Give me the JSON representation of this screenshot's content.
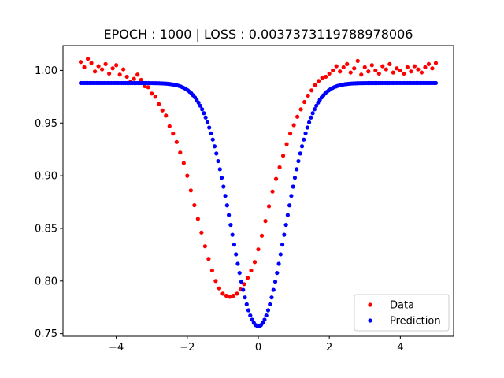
{
  "chart_data": {
    "type": "scatter",
    "title": "EPOCH : 1000 | LOSS : 0.0037373119788978006",
    "xlabel": "",
    "ylabel": "",
    "xlim": [
      -5.5,
      5.5
    ],
    "ylim": [
      0.7475,
      1.0235
    ],
    "x_ticks": [
      -4,
      -2,
      0,
      2,
      4
    ],
    "x_tick_labels": [
      "−4",
      "−2",
      "0",
      "2",
      "4"
    ],
    "y_ticks": [
      0.75,
      0.8,
      0.85,
      0.9,
      0.95,
      1.0
    ],
    "y_tick_labels": [
      "0.75",
      "0.80",
      "0.85",
      "0.90",
      "0.95",
      "1.00"
    ],
    "grid": false,
    "legend_position": "lower right",
    "series": [
      {
        "name": "Data",
        "color": "#ff0000",
        "x": [
          -5.0,
          -4.9,
          -4.8,
          -4.7,
          -4.6,
          -4.5,
          -4.4,
          -4.3,
          -4.2,
          -4.1,
          -4.0,
          -3.9,
          -3.8,
          -3.7,
          -3.6,
          -3.5,
          -3.4,
          -3.3,
          -3.2,
          -3.1,
          -3.0,
          -2.9,
          -2.8,
          -2.7,
          -2.6,
          -2.5,
          -2.4,
          -2.3,
          -2.2,
          -2.1,
          -2.0,
          -1.9,
          -1.8,
          -1.7,
          -1.6,
          -1.5,
          -1.4,
          -1.3,
          -1.2,
          -1.1,
          -1.0,
          -0.9,
          -0.8,
          -0.7,
          -0.6,
          -0.5,
          -0.4,
          -0.3,
          -0.2,
          -0.1,
          0.0,
          0.1,
          0.2,
          0.3,
          0.4,
          0.5,
          0.6,
          0.7,
          0.8,
          0.9,
          1.0,
          1.1,
          1.2,
          1.3,
          1.4,
          1.5,
          1.6,
          1.7,
          1.8,
          1.9,
          2.0,
          2.1,
          2.2,
          2.3,
          2.4,
          2.5,
          2.6,
          2.7,
          2.8,
          2.9,
          3.0,
          3.1,
          3.2,
          3.3,
          3.4,
          3.5,
          3.6,
          3.7,
          3.8,
          3.9,
          4.0,
          4.1,
          4.2,
          4.3,
          4.4,
          4.5,
          4.6,
          4.7,
          4.8,
          4.9,
          5.0
        ],
        "y": [
          1.008,
          1.003,
          1.011,
          1.007,
          0.999,
          1.004,
          1.001,
          1.006,
          0.997,
          1.002,
          1.005,
          0.996,
          1.001,
          0.994,
          0.989,
          0.992,
          0.996,
          0.991,
          0.985,
          0.984,
          0.978,
          0.975,
          0.968,
          0.962,
          0.957,
          0.947,
          0.94,
          0.932,
          0.922,
          0.912,
          0.9,
          0.886,
          0.872,
          0.859,
          0.846,
          0.833,
          0.821,
          0.81,
          0.8,
          0.793,
          0.788,
          0.786,
          0.785,
          0.786,
          0.788,
          0.792,
          0.797,
          0.803,
          0.81,
          0.818,
          0.83,
          0.843,
          0.857,
          0.871,
          0.885,
          0.897,
          0.908,
          0.919,
          0.93,
          0.94,
          0.948,
          0.956,
          0.963,
          0.97,
          0.976,
          0.981,
          0.986,
          0.99,
          0.993,
          0.994,
          0.997,
          1.0,
          1.004,
          0.999,
          1.003,
          1.006,
          0.998,
          1.002,
          1.009,
          0.996,
          1.003,
          0.999,
          1.005,
          1.0,
          0.997,
          1.004,
          1.001,
          1.006,
          0.998,
          1.002,
          1.0,
          0.997,
          1.003,
          0.999,
          1.004,
          1.001,
          0.998,
          1.003,
          1.006,
          1.002,
          1.007
        ]
      },
      {
        "name": "Prediction",
        "color": "#0000ff",
        "x_range": [
          -5.0,
          5.0
        ],
        "point_count": 200,
        "baseline": 0.988,
        "minimum": 0.757,
        "center": 0.0,
        "width": 0.75
      }
    ]
  }
}
